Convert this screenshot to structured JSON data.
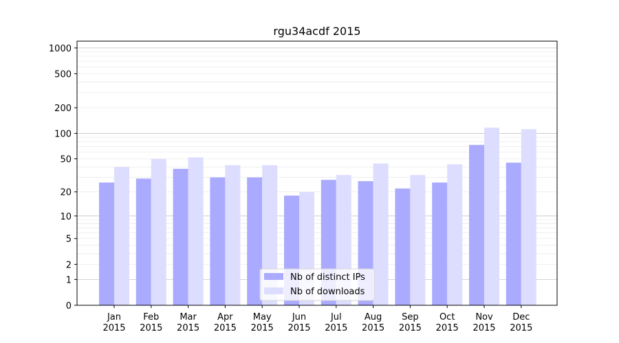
{
  "chart_data": {
    "type": "bar",
    "title": "rgu34acdf 2015",
    "xlabel": "",
    "ylabel": "",
    "yscale": "log(1+y)",
    "categories": [
      [
        "Jan",
        "2015"
      ],
      [
        "Feb",
        "2015"
      ],
      [
        "Mar",
        "2015"
      ],
      [
        "Apr",
        "2015"
      ],
      [
        "May",
        "2015"
      ],
      [
        "Jun",
        "2015"
      ],
      [
        "Jul",
        "2015"
      ],
      [
        "Aug",
        "2015"
      ],
      [
        "Sep",
        "2015"
      ],
      [
        "Oct",
        "2015"
      ],
      [
        "Nov",
        "2015"
      ],
      [
        "Dec",
        "2015"
      ]
    ],
    "series": [
      {
        "name": "Nb of distinct IPs",
        "color": "#aaaaff",
        "values": [
          26,
          29,
          38,
          30,
          30,
          18,
          28,
          27,
          22,
          26,
          73,
          45
        ]
      },
      {
        "name": "Nb of downloads",
        "color": "#ddddff",
        "values": [
          40,
          50,
          52,
          42,
          42,
          20,
          32,
          44,
          32,
          43,
          117,
          112
        ]
      }
    ],
    "yticks": [
      0,
      1,
      2,
      5,
      10,
      20,
      50,
      100,
      200,
      500,
      1000
    ],
    "ylim": [
      0,
      1200
    ],
    "grid": true,
    "legend_position": "bottom-center"
  }
}
